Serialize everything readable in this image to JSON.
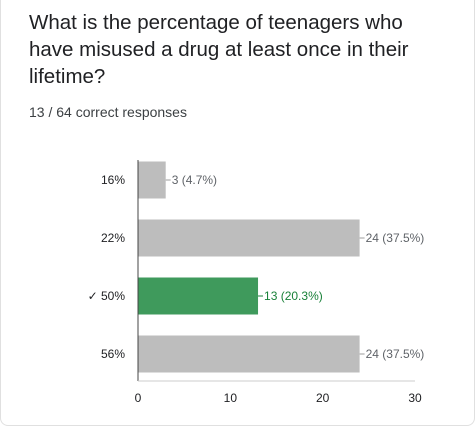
{
  "question": {
    "title": "What is the percentage of teenagers who have misused a drug at least once in their lifetime?",
    "responses": "13 / 64 correct responses"
  },
  "colors": {
    "bar": "#bdbdbd",
    "correct_bar": "#3f9a5c",
    "correct_text": "#188038",
    "label_text": "#5f6368",
    "axis": "#444444"
  },
  "chart_data": {
    "type": "bar",
    "orientation": "horizontal",
    "categories": [
      "16%",
      "22%",
      "50%",
      "56%"
    ],
    "correct_category": "50%",
    "correct_mark": "✓",
    "values": [
      3,
      24,
      13,
      24
    ],
    "value_labels": [
      "3 (4.7%)",
      "24 (37.5%)",
      "13 (20.3%)",
      "24 (37.5%)"
    ],
    "xticks": [
      "0",
      "10",
      "20",
      "30"
    ],
    "xlim": [
      0,
      30
    ],
    "grid": false
  }
}
